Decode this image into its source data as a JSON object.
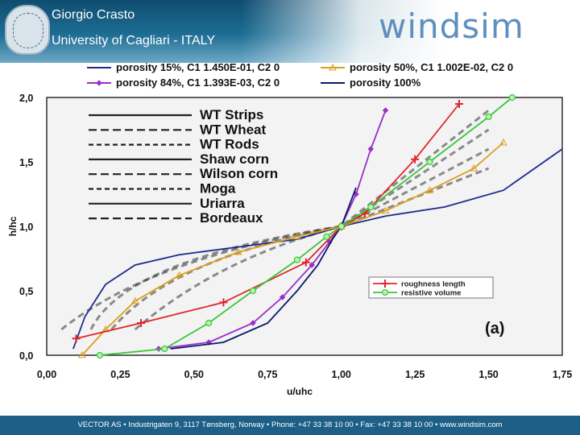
{
  "header": {
    "author": "Giorgio Crasto",
    "affiliation": "University of Cagliari - ITALY",
    "logo": "windsim"
  },
  "footer": {
    "text": "VECTOR AS  •  Industrigaten 9, 3117 Tønsberg, Norway  •  Phone: +47 33 38 10 00  •  Fax: +47 33 38 10 00  •  www.windsim.com"
  },
  "chart_data": {
    "type": "line",
    "xlabel": "u/uhc",
    "ylabel": "h/hc",
    "xlim": [
      0.0,
      1.75
    ],
    "ylim": [
      0.0,
      2.0
    ],
    "x_ticks": [
      "0,00",
      "0,25",
      "0,50",
      "0,75",
      "1,00",
      "1,25",
      "1,50",
      "1,75"
    ],
    "y_ticks": [
      "0,0",
      "0,5",
      "1,0",
      "1,5",
      "2,0"
    ],
    "legend_position": "top",
    "series": [
      {
        "name": "porosity 15%, C1 1.450E-01, C2 0",
        "color": "#1f2a8c",
        "marker": "none",
        "points": [
          [
            0.09,
            0.05
          ],
          [
            0.13,
            0.3
          ],
          [
            0.2,
            0.55
          ],
          [
            0.3,
            0.7
          ],
          [
            0.45,
            0.78
          ],
          [
            0.65,
            0.84
          ],
          [
            0.85,
            0.9
          ],
          [
            1.0,
            1.0
          ],
          [
            1.15,
            1.08
          ],
          [
            1.35,
            1.15
          ],
          [
            1.55,
            1.28
          ],
          [
            1.75,
            1.6
          ]
        ]
      },
      {
        "name": "porosity 50%, C1 1.002E-02, C2 0",
        "color": "#d9a01a",
        "marker": "triangle",
        "points": [
          [
            0.12,
            0.0
          ],
          [
            0.2,
            0.2
          ],
          [
            0.3,
            0.42
          ],
          [
            0.45,
            0.62
          ],
          [
            0.65,
            0.8
          ],
          [
            0.85,
            0.92
          ],
          [
            1.0,
            1.0
          ],
          [
            1.15,
            1.12
          ],
          [
            1.3,
            1.28
          ],
          [
            1.45,
            1.45
          ],
          [
            1.55,
            1.65
          ]
        ]
      },
      {
        "name": "porosity 84%, C1 1.393E-03, C2 0",
        "color": "#9b2fc9",
        "marker": "diamond",
        "points": [
          [
            0.38,
            0.05
          ],
          [
            0.55,
            0.1
          ],
          [
            0.7,
            0.25
          ],
          [
            0.8,
            0.45
          ],
          [
            0.9,
            0.7
          ],
          [
            0.96,
            0.88
          ],
          [
            1.0,
            1.0
          ],
          [
            1.05,
            1.25
          ],
          [
            1.1,
            1.6
          ],
          [
            1.15,
            1.9
          ]
        ]
      },
      {
        "name": "porosity 100%",
        "color": "#0a1a6b",
        "marker": "none",
        "points": [
          [
            0.42,
            0.05
          ],
          [
            0.6,
            0.1
          ],
          [
            0.75,
            0.25
          ],
          [
            0.85,
            0.5
          ],
          [
            0.92,
            0.7
          ],
          [
            0.97,
            0.9
          ],
          [
            1.0,
            1.0
          ],
          [
            1.02,
            1.12
          ],
          [
            1.05,
            1.3
          ]
        ]
      },
      {
        "name": "roughness length",
        "color": "#e0262b",
        "marker": "cross",
        "points": [
          [
            0.1,
            0.13
          ],
          [
            0.32,
            0.25
          ],
          [
            0.6,
            0.41
          ],
          [
            0.88,
            0.72
          ],
          [
            1.0,
            1.0
          ],
          [
            1.08,
            1.1
          ],
          [
            1.25,
            1.52
          ],
          [
            1.4,
            1.95
          ]
        ]
      },
      {
        "name": "resistive volume",
        "color": "#39c73a",
        "marker": "circle",
        "points": [
          [
            0.18,
            0.0
          ],
          [
            0.4,
            0.05
          ],
          [
            0.55,
            0.25
          ],
          [
            0.7,
            0.5
          ],
          [
            0.85,
            0.74
          ],
          [
            0.95,
            0.92
          ],
          [
            1.0,
            1.0
          ],
          [
            1.1,
            1.15
          ],
          [
            1.3,
            1.5
          ],
          [
            1.5,
            1.85
          ],
          [
            1.58,
            2.0
          ]
        ]
      }
    ],
    "embedded_figure_labels": [
      "WT Strips",
      "WT Wheat",
      "WT Rods",
      "Shaw corn",
      "Wilson corn",
      "Moga",
      "Uriarra",
      "Bordeaux"
    ],
    "embedded_panel_label": "(a)"
  }
}
